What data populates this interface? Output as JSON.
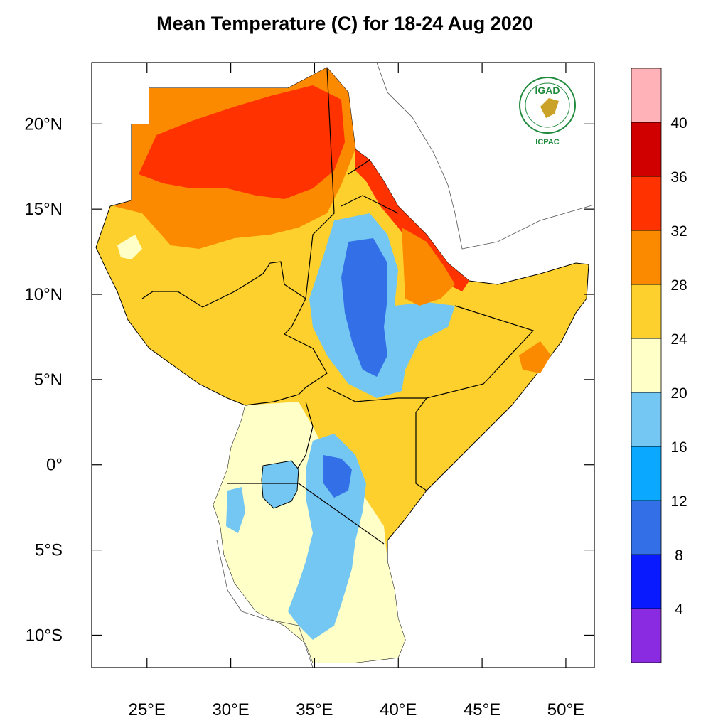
{
  "title": "Mean Temperature (C) for 18-24 Aug 2020",
  "logo": {
    "name": "IGAD",
    "sub": "ICPAC"
  },
  "map": {
    "lon_range": [
      21.7,
      51.7
    ],
    "lat_range": [
      -11.9,
      23.6
    ],
    "x_ticks": [
      {
        "lon": 25,
        "label": "25°E"
      },
      {
        "lon": 30,
        "label": "30°E"
      },
      {
        "lon": 35,
        "label": "35°E"
      },
      {
        "lon": 40,
        "label": "40°E"
      },
      {
        "lon": 45,
        "label": "45°E"
      },
      {
        "lon": 50,
        "label": "50°E"
      }
    ],
    "y_ticks": [
      {
        "lat": 20,
        "label": "20°N"
      },
      {
        "lat": 15,
        "label": "15°N"
      },
      {
        "lat": 10,
        "label": "10°N"
      },
      {
        "lat": 5,
        "label": "5°N"
      },
      {
        "lat": 0,
        "label": "0°"
      },
      {
        "lat": -5,
        "label": "5°S"
      },
      {
        "lat": -10,
        "label": "10°S"
      }
    ]
  },
  "colorbar": {
    "levels": [
      "4",
      "8",
      "12",
      "16",
      "20",
      "24",
      "28",
      "32",
      "36",
      "40"
    ],
    "colors": [
      "#8a2be2",
      "#0a1aff",
      "#3370e8",
      "#0aa8ff",
      "#74c7f2",
      "#ffffc8",
      "#fdd02e",
      "#fc8a00",
      "#ff3200",
      "#d00000",
      "#ffb3b8"
    ]
  }
}
